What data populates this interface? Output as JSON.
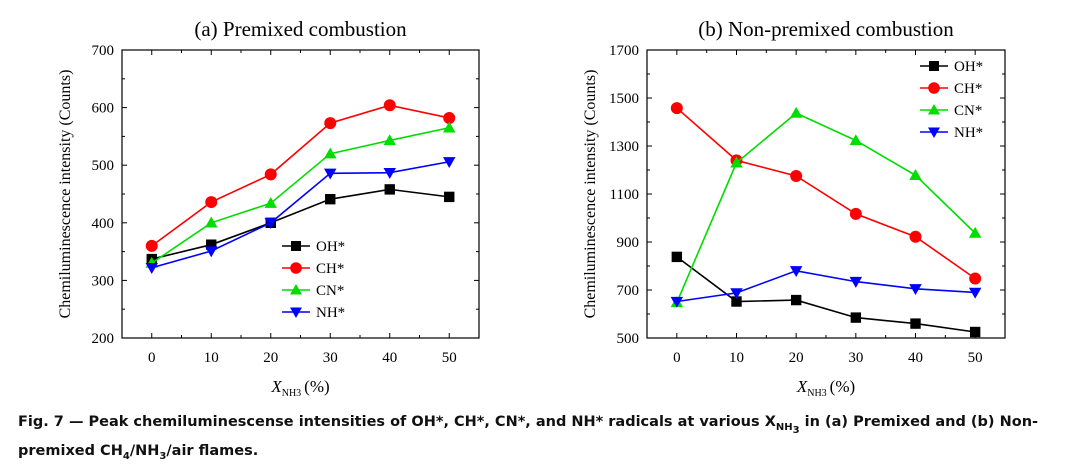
{
  "chart_data": [
    {
      "type": "line",
      "title": "(a) Premixed combustion",
      "xlabel": "X",
      "xlabel_sub": "NH3",
      "xlabel_unit": "(%)",
      "ylabel": "Chemiluminescence intensity (Counts)",
      "x": [
        0,
        10,
        20,
        30,
        40,
        50
      ],
      "xlim": [
        -5,
        55
      ],
      "ylim": [
        200,
        700
      ],
      "yticks": [
        200,
        300,
        400,
        500,
        600,
        700
      ],
      "legend_position": "lower-right",
      "series": [
        {
          "name": "OH*",
          "color": "#000000",
          "marker": "square",
          "values": [
            337,
            362,
            400,
            441,
            458,
            445
          ]
        },
        {
          "name": "CH*",
          "color": "#ff0000",
          "marker": "circle",
          "values": [
            360,
            436,
            484,
            573,
            604,
            582
          ]
        },
        {
          "name": "CN*",
          "color": "#00dd00",
          "marker": "triangle-up",
          "values": [
            330,
            400,
            434,
            520,
            543,
            565
          ]
        },
        {
          "name": "NH*",
          "color": "#0000ff",
          "marker": "triangle-down",
          "values": [
            322,
            351,
            400,
            486,
            487,
            506
          ]
        }
      ]
    },
    {
      "type": "line",
      "title": "(b) Non-premixed combustion",
      "xlabel": "X",
      "xlabel_sub": "NH3",
      "xlabel_unit": "(%)",
      "ylabel": "Chemiluminescence intensity (Counts)",
      "x": [
        0,
        10,
        20,
        30,
        40,
        50
      ],
      "xlim": [
        -5,
        55
      ],
      "ylim": [
        500,
        1700
      ],
      "yticks": [
        500,
        700,
        900,
        1100,
        1300,
        1500,
        1700
      ],
      "legend_position": "top-right",
      "series": [
        {
          "name": "OH*",
          "color": "#000000",
          "marker": "square",
          "values": [
            838,
            652,
            658,
            585,
            560,
            525
          ]
        },
        {
          "name": "CH*",
          "color": "#ff0000",
          "marker": "circle",
          "values": [
            1458,
            1240,
            1175,
            1017,
            922,
            748
          ]
        },
        {
          "name": "CN*",
          "color": "#00dd00",
          "marker": "triangle-up",
          "values": [
            648,
            1230,
            1437,
            1323,
            1178,
            937
          ]
        },
        {
          "name": "NH*",
          "color": "#0000ff",
          "marker": "triangle-down",
          "values": [
            652,
            688,
            780,
            735,
            705,
            690
          ]
        }
      ]
    }
  ],
  "caption": {
    "prefix": "Fig. 7 — Peak chemiluminescense intensities of OH*, CH*, CN*, and NH* radicals at various ",
    "x_main": "X",
    "x_sub": "NH",
    "x_sub2": "3",
    "middle": " in (a) Premixed and (b) Non-",
    "line2a": "premixed CH",
    "line2_sub1": "4",
    "line2b": "/NH",
    "line2_sub2": "3",
    "line2c": "/air flames."
  }
}
